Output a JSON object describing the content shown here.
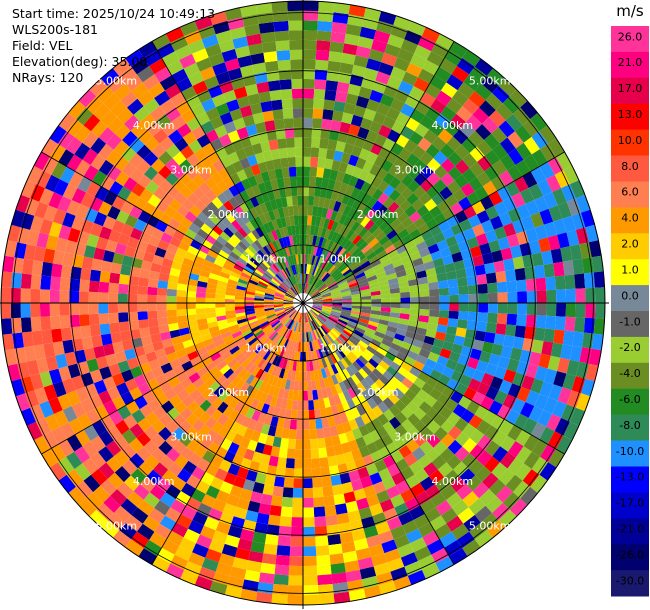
{
  "info": {
    "start_time": "Start time: 2025/10/24 10:49:13",
    "instrument": "WLS200s-181",
    "field": "Field: VEL",
    "elevation": "Elevation(deg): 35.00",
    "nrays": "NRays: 120"
  },
  "colorbar": {
    "unit": "m/s",
    "ticks": [
      "26.0",
      "21.0",
      "17.0",
      "13.0",
      "10.0",
      "8.0",
      "6.0",
      "4.0",
      "2.0",
      "1.0",
      "0.0",
      "-1.0",
      "-2.0",
      "-4.0",
      "-6.0",
      "-8.0",
      "-10.0",
      "-13.0",
      "-17.0",
      "-21.0",
      "-26.0",
      "-30.0"
    ],
    "colors": [
      "#ff3399",
      "#ff0080",
      "#e6004c",
      "#ff0000",
      "#ff3300",
      "#ff5a40",
      "#ff7f50",
      "#ff9900",
      "#ffcc00",
      "#ffff00",
      "#778899",
      "#666666",
      "#9acd32",
      "#6b8e23",
      "#228b22",
      "#2e8b57",
      "#1e90ff",
      "#0000ff",
      "#0000cd",
      "#000099",
      "#00006e",
      "#191970"
    ]
  },
  "ring_labels": [
    "1.00km",
    "2.00km",
    "3.00km",
    "4.00km",
    "5.00km"
  ],
  "chart_data": {
    "type": "heatmap",
    "title": "",
    "field": "VEL",
    "units": "m/s",
    "elevation_deg": 35.0,
    "n_rays": 120,
    "range_rings_km": [
      1.0,
      2.0,
      3.0,
      4.0,
      5.0
    ],
    "max_range_km": 5.2,
    "sector_mean_velocity_ms": {
      "north_near": -6.0,
      "northeast_far": -6.0,
      "east_far": -10.0,
      "southeast_far": -4.0,
      "south_near": 4.0,
      "south_far": 2.0,
      "southwest": 4.0,
      "west": 6.0,
      "northwest": 4.0
    },
    "grid": true
  }
}
